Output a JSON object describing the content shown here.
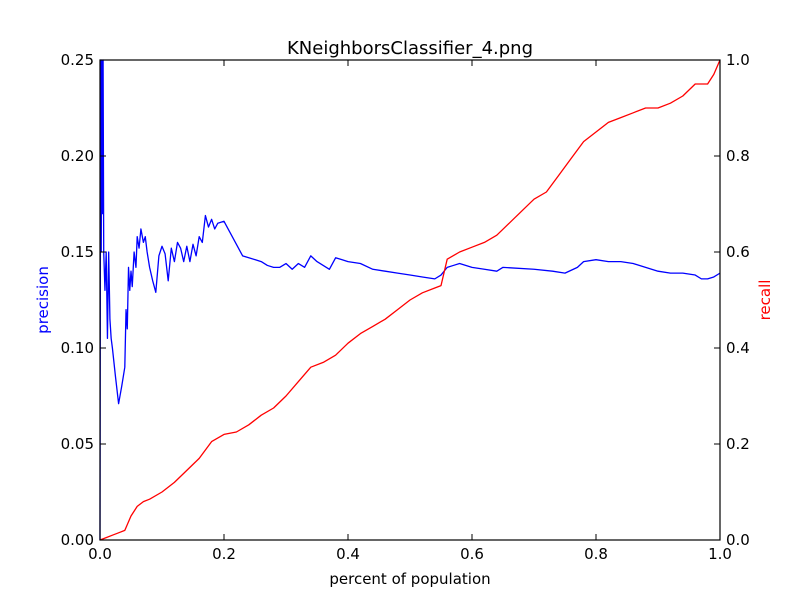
{
  "chart_data": {
    "type": "line",
    "title": "KNeighborsClassifier_4.png",
    "xlabel": "percent of population",
    "ylabel_left": "precision",
    "ylabel_right": "recall",
    "xlim": [
      0.0,
      1.0
    ],
    "ylim_left": [
      0.0,
      0.25
    ],
    "ylim_right": [
      0.0,
      1.0
    ],
    "grid": false,
    "x_ticks": [
      "0.0",
      "0.2",
      "0.4",
      "0.6",
      "0.8",
      "1.0"
    ],
    "y_ticks_left": [
      "0.00",
      "0.05",
      "0.10",
      "0.15",
      "0.20",
      "0.25"
    ],
    "y_ticks_right": [
      "0.0",
      "0.2",
      "0.4",
      "0.6",
      "0.8",
      "1.0"
    ],
    "colors": {
      "precision": "#0000ff",
      "recall": "#ff0000",
      "axes": "#000000"
    },
    "series": [
      {
        "axis": "left",
        "color": "#0000ff",
        "x": [
          0.0,
          0.001,
          0.002,
          0.003,
          0.004,
          0.005,
          0.006,
          0.008,
          0.01,
          0.012,
          0.014,
          0.016,
          0.018,
          0.02,
          0.025,
          0.03,
          0.035,
          0.04,
          0.042,
          0.044,
          0.046,
          0.048,
          0.05,
          0.052,
          0.055,
          0.058,
          0.06,
          0.063,
          0.066,
          0.07,
          0.073,
          0.076,
          0.08,
          0.085,
          0.09,
          0.095,
          0.1,
          0.105,
          0.11,
          0.115,
          0.12,
          0.125,
          0.13,
          0.135,
          0.14,
          0.145,
          0.15,
          0.155,
          0.16,
          0.165,
          0.17,
          0.175,
          0.18,
          0.185,
          0.19,
          0.2,
          0.21,
          0.22,
          0.23,
          0.24,
          0.25,
          0.26,
          0.27,
          0.28,
          0.29,
          0.3,
          0.31,
          0.32,
          0.33,
          0.34,
          0.35,
          0.36,
          0.37,
          0.38,
          0.39,
          0.4,
          0.42,
          0.44,
          0.46,
          0.48,
          0.5,
          0.52,
          0.54,
          0.55,
          0.56,
          0.57,
          0.58,
          0.6,
          0.62,
          0.64,
          0.65,
          0.7,
          0.73,
          0.75,
          0.77,
          0.78,
          0.8,
          0.82,
          0.84,
          0.86,
          0.88,
          0.9,
          0.92,
          0.94,
          0.96,
          0.97,
          0.98,
          0.99,
          1.0
        ],
        "y": [
          0.0,
          0.25,
          0.15,
          0.25,
          0.17,
          0.25,
          0.15,
          0.13,
          0.15,
          0.105,
          0.15,
          0.115,
          0.105,
          0.1,
          0.085,
          0.071,
          0.08,
          0.09,
          0.12,
          0.11,
          0.142,
          0.13,
          0.14,
          0.132,
          0.15,
          0.142,
          0.158,
          0.152,
          0.162,
          0.155,
          0.158,
          0.15,
          0.142,
          0.135,
          0.129,
          0.148,
          0.153,
          0.149,
          0.135,
          0.152,
          0.145,
          0.155,
          0.152,
          0.145,
          0.153,
          0.145,
          0.154,
          0.148,
          0.158,
          0.155,
          0.169,
          0.163,
          0.167,
          0.162,
          0.165,
          0.166,
          0.16,
          0.154,
          0.148,
          0.147,
          0.146,
          0.145,
          0.143,
          0.142,
          0.142,
          0.144,
          0.141,
          0.144,
          0.142,
          0.148,
          0.145,
          0.143,
          0.141,
          0.147,
          0.146,
          0.145,
          0.144,
          0.141,
          0.14,
          0.139,
          0.138,
          0.137,
          0.136,
          0.138,
          0.142,
          0.143,
          0.144,
          0.142,
          0.141,
          0.14,
          0.142,
          0.141,
          0.14,
          0.139,
          0.142,
          0.145,
          0.146,
          0.145,
          0.145,
          0.144,
          0.142,
          0.14,
          0.139,
          0.139,
          0.138,
          0.136,
          0.136,
          0.137,
          0.139
        ]
      },
      {
        "axis": "right",
        "color": "#ff0000",
        "x": [
          0.0,
          0.01,
          0.02,
          0.03,
          0.04,
          0.05,
          0.06,
          0.07,
          0.08,
          0.1,
          0.12,
          0.14,
          0.16,
          0.18,
          0.2,
          0.22,
          0.24,
          0.26,
          0.28,
          0.3,
          0.32,
          0.34,
          0.36,
          0.38,
          0.4,
          0.42,
          0.44,
          0.46,
          0.48,
          0.5,
          0.52,
          0.54,
          0.55,
          0.56,
          0.58,
          0.6,
          0.62,
          0.64,
          0.7,
          0.72,
          0.74,
          0.76,
          0.78,
          0.8,
          0.82,
          0.84,
          0.86,
          0.88,
          0.9,
          0.92,
          0.94,
          0.96,
          0.98,
          0.99,
          1.0
        ],
        "y": [
          0.0,
          0.005,
          0.01,
          0.015,
          0.02,
          0.05,
          0.07,
          0.08,
          0.085,
          0.1,
          0.12,
          0.145,
          0.17,
          0.205,
          0.22,
          0.225,
          0.24,
          0.26,
          0.275,
          0.3,
          0.33,
          0.36,
          0.37,
          0.385,
          0.41,
          0.43,
          0.445,
          0.46,
          0.48,
          0.5,
          0.515,
          0.525,
          0.53,
          0.585,
          0.6,
          0.61,
          0.62,
          0.635,
          0.71,
          0.725,
          0.76,
          0.795,
          0.83,
          0.85,
          0.87,
          0.88,
          0.89,
          0.9,
          0.9,
          0.91,
          0.925,
          0.95,
          0.95,
          0.97,
          1.0
        ]
      }
    ]
  }
}
